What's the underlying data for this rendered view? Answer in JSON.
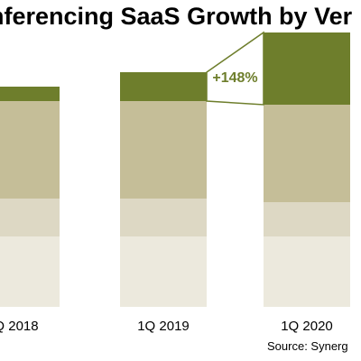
{
  "chart_data": {
    "type": "bar",
    "stacked": true,
    "title": "nferencing SaaS Growth by Ver",
    "categories": [
      "Q 2018",
      "1Q 2019",
      "1Q 2020"
    ],
    "series": [
      {
        "color": "#ECE9DD",
        "values": [
          3.9,
          3.9,
          3.9
        ]
      },
      {
        "color": "#DDD8C4",
        "values": [
          2.1,
          2.1,
          1.9
        ]
      },
      {
        "color": "#C5BE98",
        "values": [
          5.4,
          5.4,
          5.4
        ]
      },
      {
        "color": "#6E7E2C",
        "values": [
          0.8,
          1.6,
          4.0
        ]
      }
    ],
    "annotation": {
      "text": "+148%",
      "color": "#6E7E2C"
    },
    "ylim": [
      0,
      15.5
    ],
    "grid": false,
    "source": "Source: Synerg"
  }
}
